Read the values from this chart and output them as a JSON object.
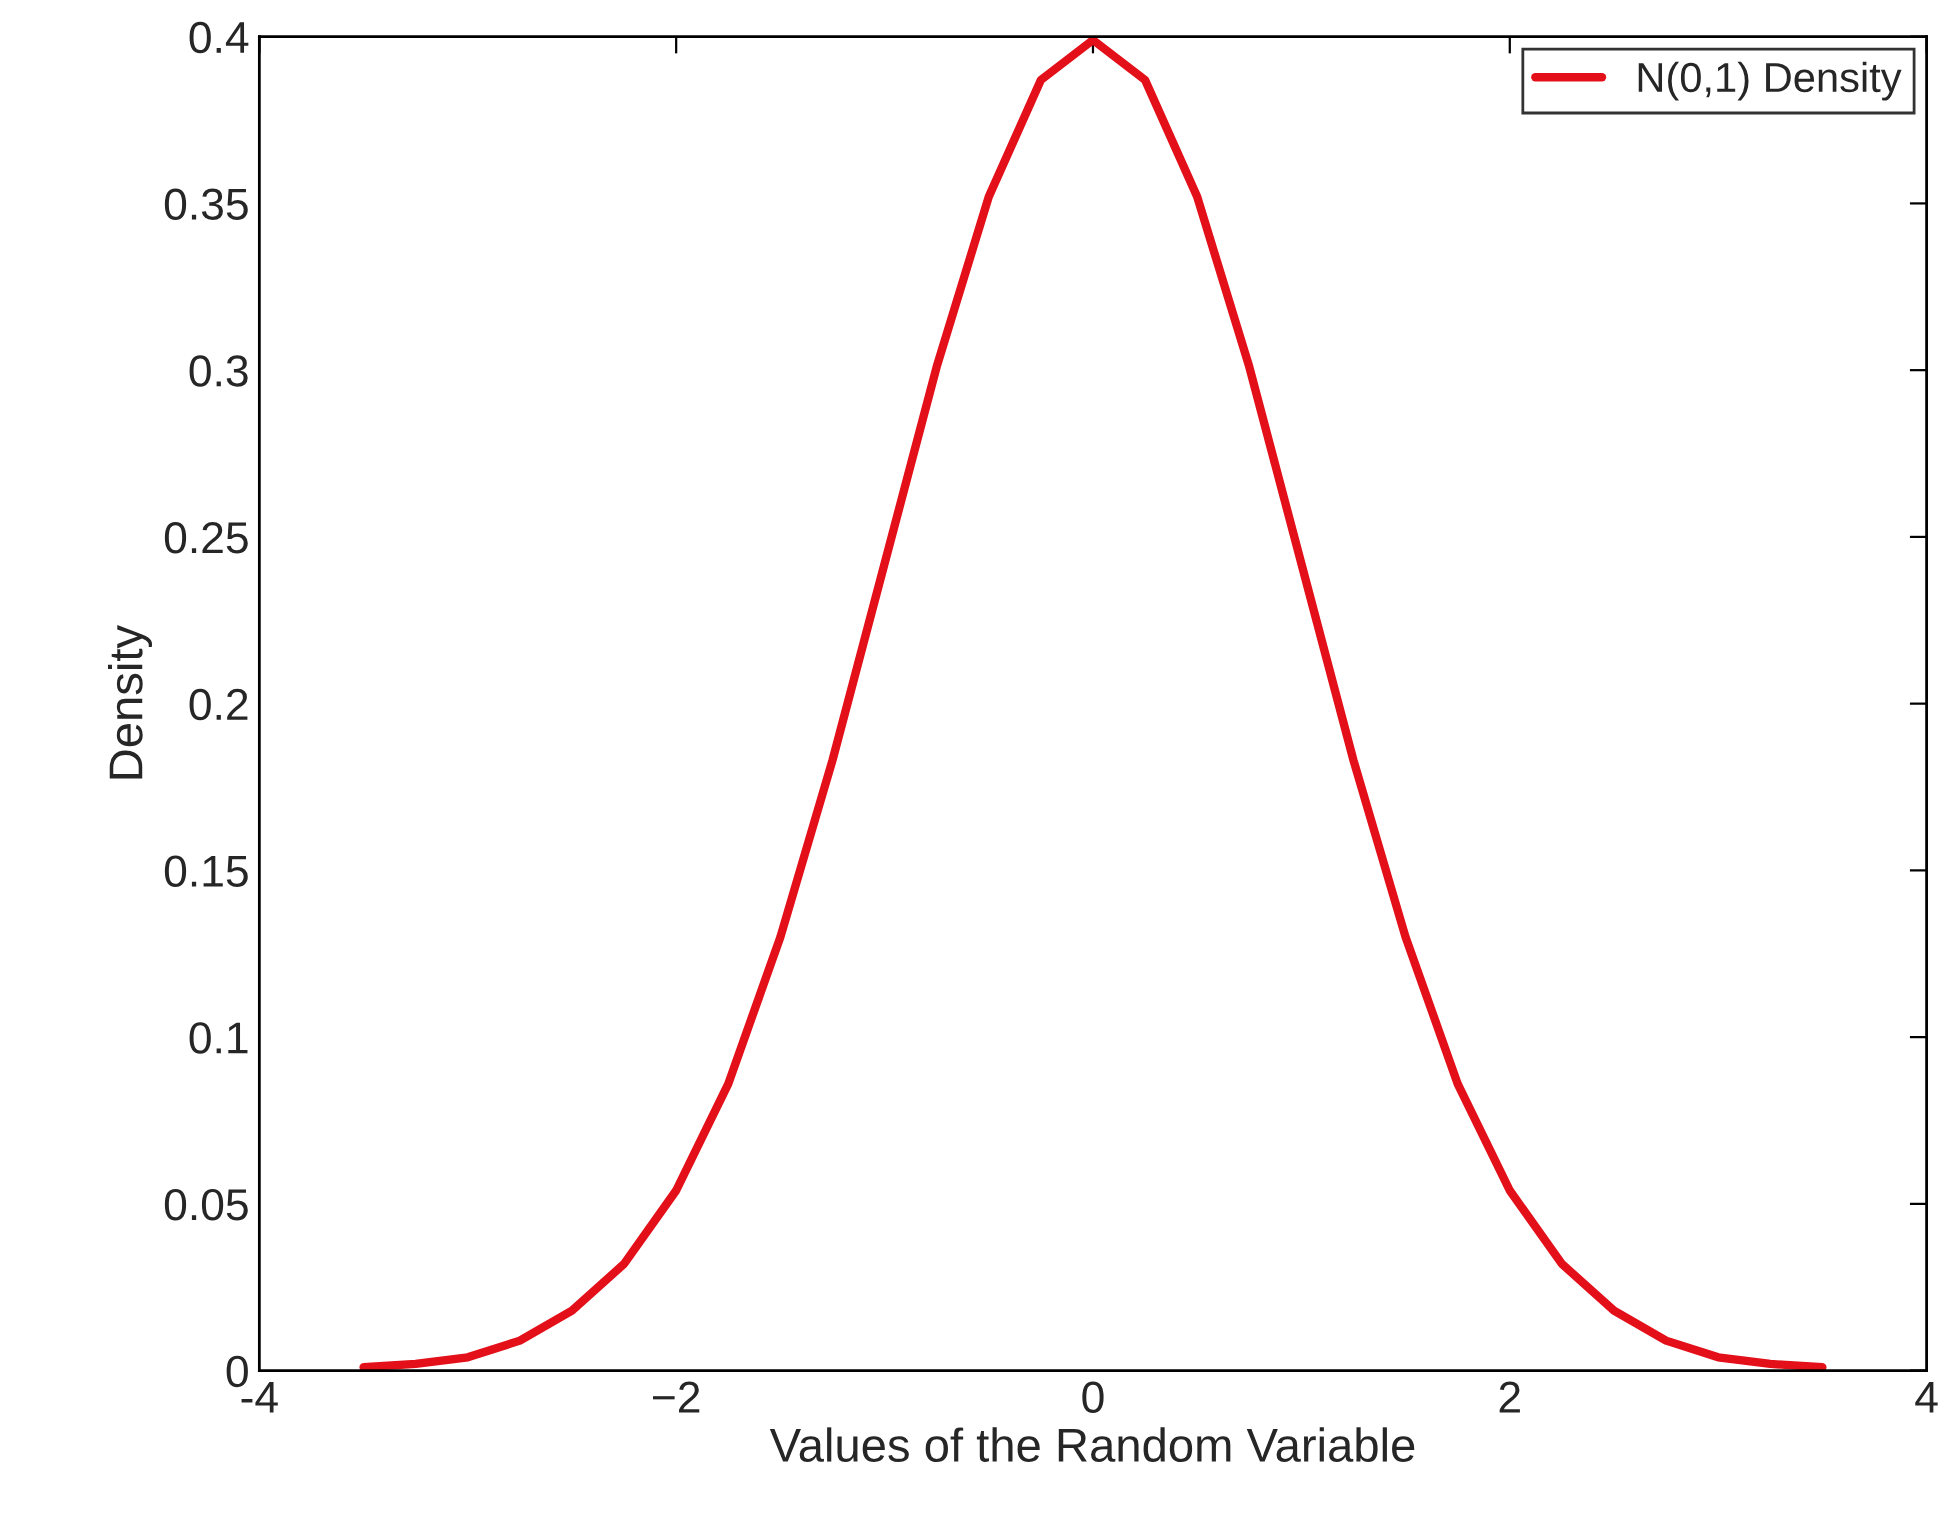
{
  "chart_data": {
    "type": "line",
    "xlabel": "Values of the Random Variable",
    "ylabel": "Density",
    "x": [
      -3.5,
      -3.25,
      -3,
      -2.75,
      -2.5,
      -2.25,
      -2,
      -1.75,
      -1.5,
      -1.25,
      -1,
      -0.75,
      -0.5,
      -0.25,
      0,
      0.25,
      0.5,
      0.75,
      1,
      1.25,
      1.5,
      1.75,
      2,
      2.25,
      2.5,
      2.75,
      3,
      3.25,
      3.5
    ],
    "series": [
      {
        "name": "N(0,1) Density",
        "color": "#e3101a",
        "values": [
          0.001,
          0.002,
          0.004,
          0.009,
          0.018,
          0.032,
          0.054,
          0.086,
          0.13,
          0.183,
          0.242,
          0.301,
          0.352,
          0.387,
          0.399,
          0.387,
          0.352,
          0.301,
          0.242,
          0.183,
          0.13,
          0.086,
          0.054,
          0.032,
          0.018,
          0.009,
          0.004,
          0.002,
          0.001
        ]
      }
    ],
    "xlim": [
      -4,
      4
    ],
    "xticks": [
      {
        "value": -4,
        "label": "-4"
      },
      {
        "value": -2,
        "label": "−2"
      },
      0,
      2,
      4
    ],
    "ylim": [
      0,
      0.4
    ],
    "yticks": [
      0,
      0.05,
      0.1,
      0.15,
      0.2,
      0.25,
      0.3,
      0.35,
      0.4
    ],
    "grid": false,
    "legend": "top right",
    "line_style": "solid",
    "marker": "none"
  }
}
